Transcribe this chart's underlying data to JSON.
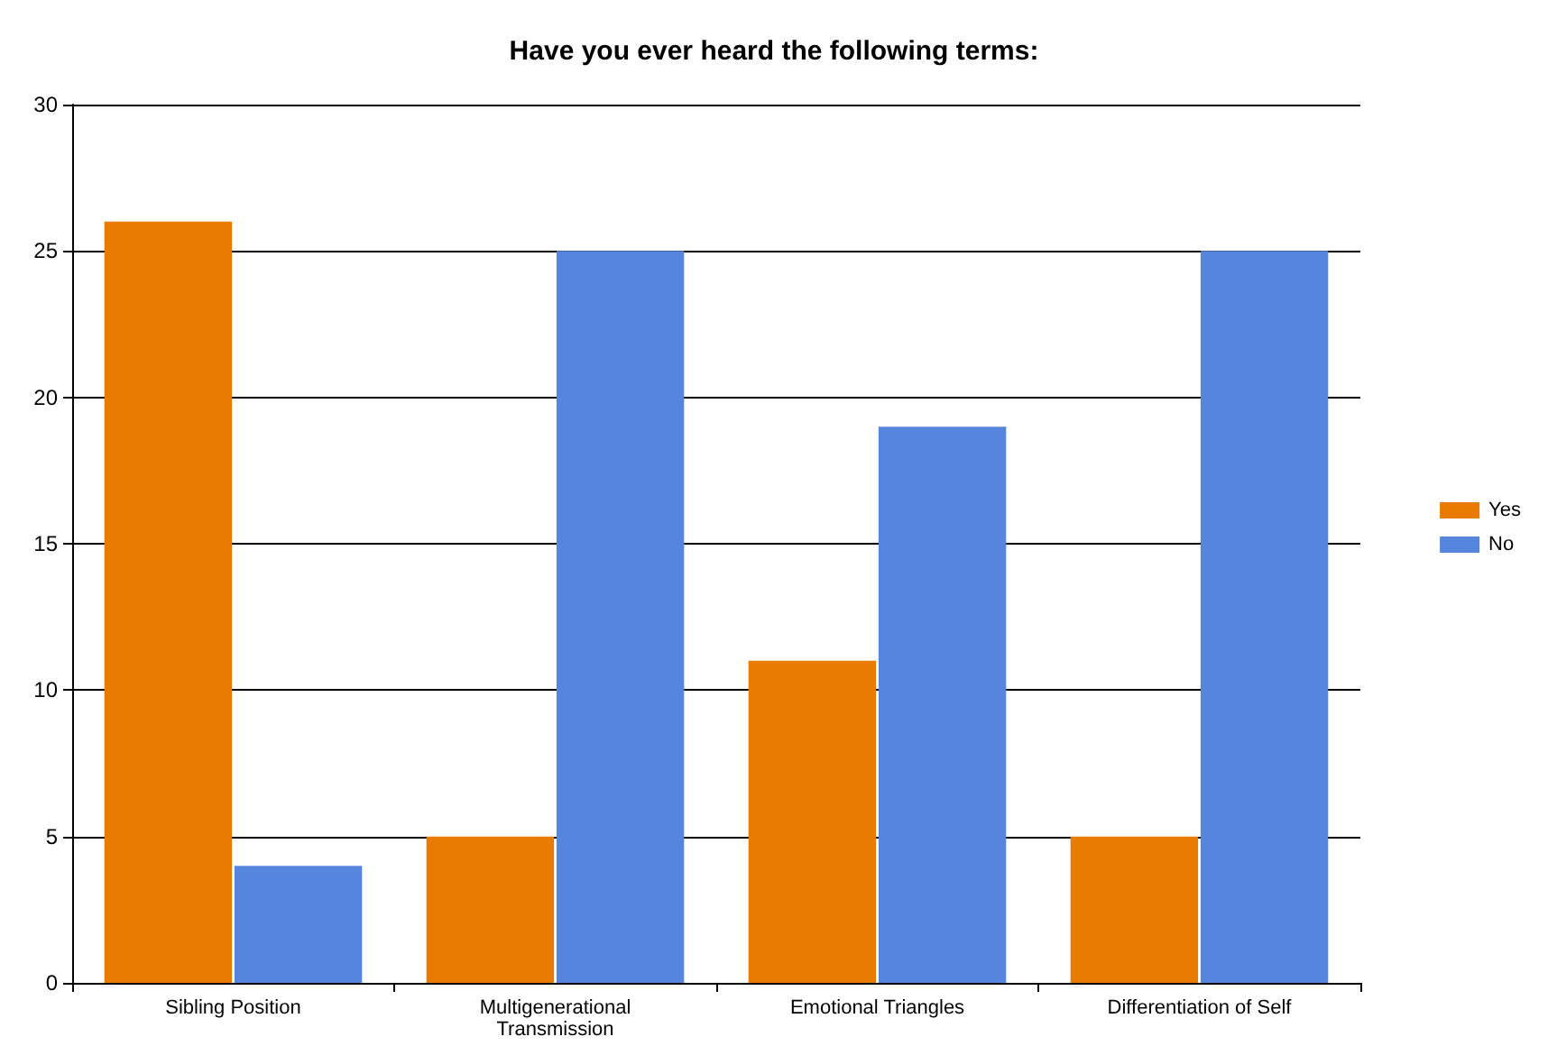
{
  "chart_data": {
    "type": "bar",
    "title": "Have you ever heard the following terms:",
    "categories": [
      "Sibling Position",
      "Multigenerational\nTransmission",
      "Emotional Triangles",
      "Differentiation of Self"
    ],
    "series": [
      {
        "name": "Yes",
        "color": "#e87b00",
        "values": [
          26,
          5,
          11,
          5
        ]
      },
      {
        "name": "No",
        "color": "#5585dc",
        "values": [
          4,
          25,
          19,
          25
        ]
      }
    ],
    "ylim": [
      0,
      30
    ],
    "yticks": [
      0,
      5,
      10,
      15,
      20,
      25,
      30
    ],
    "grid": "y",
    "legend": "right"
  }
}
